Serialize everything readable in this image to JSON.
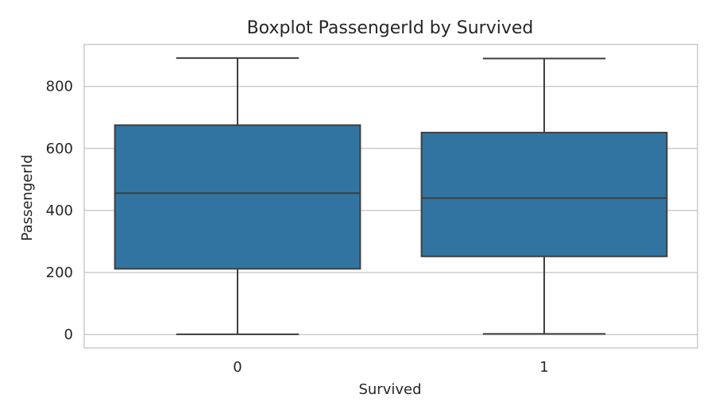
{
  "chart_data": {
    "type": "box",
    "title": "Boxplot PassengerId by Survived",
    "xlabel": "Survived",
    "ylabel": "PassengerId",
    "categories": [
      "0",
      "1"
    ],
    "boxes": [
      {
        "category": "0",
        "min": 1,
        "q1": 212,
        "median": 456,
        "q3": 675,
        "max": 891
      },
      {
        "category": "1",
        "min": 2,
        "q1": 252,
        "median": 440,
        "q3": 651,
        "max": 890
      }
    ],
    "yticks": [
      0,
      200,
      400,
      600,
      800
    ],
    "ylim": [
      -43,
      935
    ],
    "grid": true,
    "colors": {
      "box": "#3274a1",
      "line": "#3f3f3f",
      "grid": "#cccccc",
      "spine": "#cccccc"
    }
  }
}
